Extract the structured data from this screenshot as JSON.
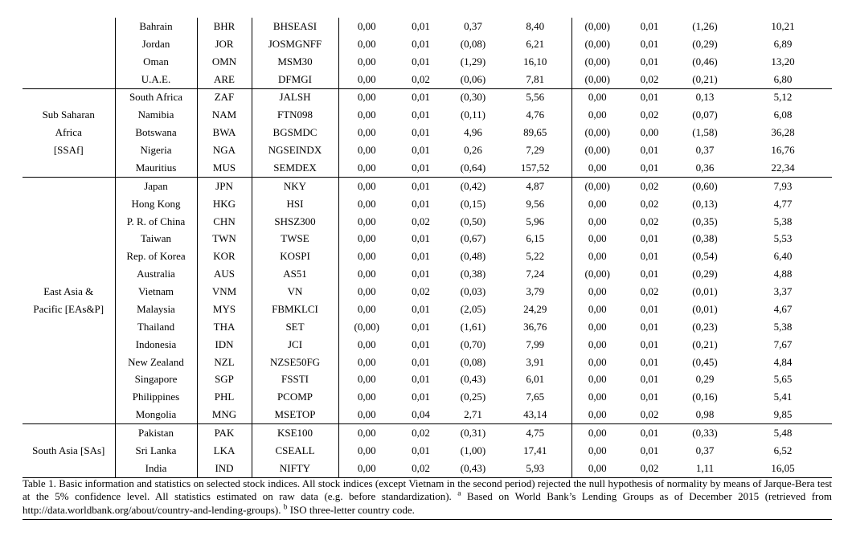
{
  "table": {
    "groups": [
      {
        "region_lines": [],
        "rows": [
          {
            "country": "Bahrain",
            "code": "BHR",
            "index": "BHSEASI",
            "values": [
              "0,00",
              "0,01",
              "0,37",
              "8,40",
              "(0,00)",
              "0,01",
              "(1,26)",
              "10,21"
            ]
          },
          {
            "country": "Jordan",
            "code": "JOR",
            "index": "JOSMGNFF",
            "values": [
              "0,00",
              "0,01",
              "(0,08)",
              "6,21",
              "(0,00)",
              "0,01",
              "(0,29)",
              "6,89"
            ]
          },
          {
            "country": "Oman",
            "code": "OMN",
            "index": "MSM30",
            "values": [
              "0,00",
              "0,01",
              "(1,29)",
              "16,10",
              "(0,00)",
              "0,01",
              "(0,46)",
              "13,20"
            ]
          },
          {
            "country": "U.A.E.",
            "code": "ARE",
            "index": "DFMGI",
            "values": [
              "0,00",
              "0,02",
              "(0,06)",
              "7,81",
              "(0,00)",
              "0,02",
              "(0,21)",
              "6,80"
            ]
          }
        ]
      },
      {
        "region_lines": [
          "Sub Saharan",
          "Africa",
          "[SSAf]"
        ],
        "rows": [
          {
            "country": "South Africa",
            "code": "ZAF",
            "index": "JALSH",
            "values": [
              "0,00",
              "0,01",
              "(0,30)",
              "5,56",
              "0,00",
              "0,01",
              "0,13",
              "5,12"
            ]
          },
          {
            "country": "Namibia",
            "code": "NAM",
            "index": "FTN098",
            "values": [
              "0,00",
              "0,01",
              "(0,11)",
              "4,76",
              "0,00",
              "0,02",
              "(0,07)",
              "6,08"
            ]
          },
          {
            "country": "Botswana",
            "code": "BWA",
            "index": "BGSMDC",
            "values": [
              "0,00",
              "0,01",
              "4,96",
              "89,65",
              "(0,00)",
              "0,00",
              "(1,58)",
              "36,28"
            ]
          },
          {
            "country": "Nigeria",
            "code": "NGA",
            "index": "NGSEINDX",
            "values": [
              "0,00",
              "0,01",
              "0,26",
              "7,29",
              "(0,00)",
              "0,01",
              "0,37",
              "16,76"
            ]
          },
          {
            "country": "Mauritius",
            "code": "MUS",
            "index": "SEMDEX",
            "values": [
              "0,00",
              "0,01",
              "(0,64)",
              "157,52",
              "0,00",
              "0,01",
              "0,36",
              "22,34"
            ]
          }
        ]
      },
      {
        "region_lines": [
          "East Asia &",
          "Pacific [EAs&P]"
        ],
        "rows": [
          {
            "country": "Japan",
            "code": "JPN",
            "index": "NKY",
            "values": [
              "0,00",
              "0,01",
              "(0,42)",
              "4,87",
              "(0,00)",
              "0,02",
              "(0,60)",
              "7,93"
            ]
          },
          {
            "country": "Hong Kong",
            "code": "HKG",
            "index": "HSI",
            "values": [
              "0,00",
              "0,01",
              "(0,15)",
              "9,56",
              "0,00",
              "0,02",
              "(0,13)",
              "4,77"
            ]
          },
          {
            "country": "P. R. of China",
            "code": "CHN",
            "index": "SHSZ300",
            "values": [
              "0,00",
              "0,02",
              "(0,50)",
              "5,96",
              "0,00",
              "0,02",
              "(0,35)",
              "5,38"
            ]
          },
          {
            "country": "Taiwan",
            "code": "TWN",
            "index": "TWSE",
            "values": [
              "0,00",
              "0,01",
              "(0,67)",
              "6,15",
              "0,00",
              "0,01",
              "(0,38)",
              "5,53"
            ]
          },
          {
            "country": "Rep. of Korea",
            "code": "KOR",
            "index": "KOSPI",
            "values": [
              "0,00",
              "0,01",
              "(0,48)",
              "5,22",
              "0,00",
              "0,01",
              "(0,54)",
              "6,40"
            ]
          },
          {
            "country": "Australia",
            "code": "AUS",
            "index": "AS51",
            "values": [
              "0,00",
              "0,01",
              "(0,38)",
              "7,24",
              "(0,00)",
              "0,01",
              "(0,29)",
              "4,88"
            ]
          },
          {
            "country": "Vietnam",
            "code": "VNM",
            "index": "VN",
            "values": [
              "0,00",
              "0,02",
              "(0,03)",
              "3,79",
              "0,00",
              "0,02",
              "(0,01)",
              "3,37"
            ]
          },
          {
            "country": "Malaysia",
            "code": "MYS",
            "index": "FBMKLCI",
            "values": [
              "0,00",
              "0,01",
              "(2,05)",
              "24,29",
              "0,00",
              "0,01",
              "(0,01)",
              "4,67"
            ]
          },
          {
            "country": "Thailand",
            "code": "THA",
            "index": "SET",
            "values": [
              "(0,00)",
              "0,01",
              "(1,61)",
              "36,76",
              "0,00",
              "0,01",
              "(0,23)",
              "5,38"
            ]
          },
          {
            "country": "Indonesia",
            "code": "IDN",
            "index": "JCI",
            "values": [
              "0,00",
              "0,01",
              "(0,70)",
              "7,99",
              "0,00",
              "0,01",
              "(0,21)",
              "7,67"
            ]
          },
          {
            "country": "New Zealand",
            "code": "NZL",
            "index": "NZSE50FG",
            "values": [
              "0,00",
              "0,01",
              "(0,08)",
              "3,91",
              "0,00",
              "0,01",
              "(0,45)",
              "4,84"
            ]
          },
          {
            "country": "Singapore",
            "code": "SGP",
            "index": "FSSTI",
            "values": [
              "0,00",
              "0,01",
              "(0,43)",
              "6,01",
              "0,00",
              "0,01",
              "0,29",
              "5,65"
            ]
          },
          {
            "country": "Philippines",
            "code": "PHL",
            "index": "PCOMP",
            "values": [
              "0,00",
              "0,01",
              "(0,25)",
              "7,65",
              "0,00",
              "0,01",
              "(0,16)",
              "5,41"
            ]
          },
          {
            "country": "Mongolia",
            "code": "MNG",
            "index": "MSETOP",
            "values": [
              "0,00",
              "0,04",
              "2,71",
              "43,14",
              "0,00",
              "0,02",
              "0,98",
              "9,85"
            ]
          }
        ]
      },
      {
        "region_lines": [
          "South Asia [SAs]"
        ],
        "rows": [
          {
            "country": "Pakistan",
            "code": "PAK",
            "index": "KSE100",
            "values": [
              "0,00",
              "0,02",
              "(0,31)",
              "4,75",
              "0,00",
              "0,01",
              "(0,33)",
              "5,48"
            ]
          },
          {
            "country": "Sri Lanka",
            "code": "LKA",
            "index": "CSEALL",
            "values": [
              "0,00",
              "0,01",
              "(1,00)",
              "17,41",
              "0,00",
              "0,01",
              "0,37",
              "6,52"
            ]
          },
          {
            "country": "India",
            "code": "IND",
            "index": "NIFTY",
            "values": [
              "0,00",
              "0,02",
              "(0,43)",
              "5,93",
              "0,00",
              "0,02",
              "1,11",
              "16,05"
            ]
          }
        ]
      }
    ]
  },
  "caption": {
    "p1": "Table 1. Basic information and statistics on selected stock indices. All stock indices (except Vietnam in the second period) rejected the null hypothesis of normality by means of Jarque-Bera test at the 5% confidence level. All statistics estimated on raw data (e.g. before standardization). ",
    "sup_a": "a",
    "p2": " Based on World Bank’s Lending Groups as of December 2015 (retrieved from http://data.worldbank.org/about/country-and-lending-groups). ",
    "sup_b": "b",
    "p3": " ISO three-letter country code."
  }
}
